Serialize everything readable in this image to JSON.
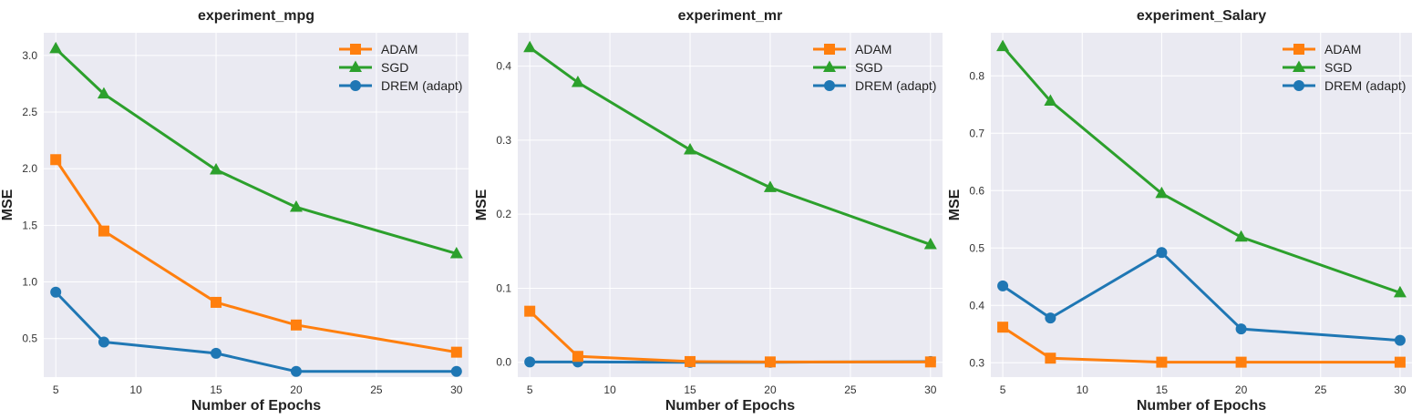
{
  "figure": {
    "colors": {
      "ADAM": "#ff7f0e",
      "SGD": "#2ca02c",
      "DREM (adapt)": "#1f77b4",
      "plot_bg": "#eaeaf2",
      "grid": "#ffffff"
    },
    "legend_order": [
      "ADAM",
      "SGD",
      "DREM (adapt)"
    ],
    "markers": {
      "ADAM": "square",
      "SGD": "triangle",
      "DREM (adapt)": "circle"
    }
  },
  "chart_data": [
    {
      "type": "line",
      "title": "experiment_mpg",
      "xlabel": "Number of Epochs",
      "ylabel": "MSE",
      "x": [
        5,
        8,
        15,
        20,
        30
      ],
      "xlim": [
        4.25,
        30.75
      ],
      "ylim": [
        0.16,
        3.2
      ],
      "xticks": [
        5,
        10,
        15,
        20,
        25,
        30
      ],
      "yticks": [
        0.5,
        1.0,
        1.5,
        2.0,
        2.5,
        3.0
      ],
      "ytick_labels": [
        "0.5",
        "1.0",
        "1.5",
        "2.0",
        "2.5",
        "3.0"
      ],
      "grid": true,
      "legend": "top-right",
      "series": [
        {
          "name": "ADAM",
          "values": [
            2.08,
            1.45,
            0.82,
            0.62,
            0.38
          ]
        },
        {
          "name": "SGD",
          "values": [
            3.06,
            2.66,
            1.99,
            1.66,
            1.25
          ]
        },
        {
          "name": "DREM (adapt)",
          "values": [
            0.91,
            0.47,
            0.37,
            0.21,
            0.21
          ]
        }
      ]
    },
    {
      "type": "line",
      "title": "experiment_mr",
      "xlabel": "Number of Epochs",
      "ylabel": "MSE",
      "x": [
        5,
        8,
        15,
        20,
        30
      ],
      "xlim": [
        4.25,
        30.75
      ],
      "ylim": [
        -0.02,
        0.445
      ],
      "xticks": [
        5,
        10,
        15,
        20,
        25,
        30
      ],
      "yticks": [
        0.0,
        0.1,
        0.2,
        0.3,
        0.4
      ],
      "ytick_labels": [
        "0.0",
        "0.1",
        "0.2",
        "0.3",
        "0.4"
      ],
      "grid": true,
      "legend": "top-right",
      "series": [
        {
          "name": "ADAM",
          "values": [
            0.069,
            0.008,
            0.001,
            0.0005,
            0.0005
          ]
        },
        {
          "name": "SGD",
          "values": [
            0.425,
            0.378,
            0.287,
            0.236,
            0.159
          ]
        },
        {
          "name": "DREM (adapt)",
          "values": [
            0.0005,
            0.0005,
            0.0,
            0.0,
            0.001
          ]
        }
      ]
    },
    {
      "type": "line",
      "title": "experiment_Salary",
      "xlabel": "Number of Epochs",
      "ylabel": "MSE",
      "x": [
        5,
        8,
        15,
        20,
        30
      ],
      "xlim": [
        4.25,
        30.75
      ],
      "ylim": [
        0.275,
        0.875
      ],
      "xticks": [
        5,
        10,
        15,
        20,
        25,
        30
      ],
      "yticks": [
        0.3,
        0.4,
        0.5,
        0.6,
        0.7,
        0.8
      ],
      "ytick_labels": [
        "0.3",
        "0.4",
        "0.5",
        "0.6",
        "0.7",
        "0.8"
      ],
      "grid": true,
      "legend": "top-right",
      "series": [
        {
          "name": "ADAM",
          "values": [
            0.362,
            0.308,
            0.301,
            0.301,
            0.301
          ]
        },
        {
          "name": "SGD",
          "values": [
            0.851,
            0.756,
            0.595,
            0.519,
            0.422
          ]
        },
        {
          "name": "DREM (adapt)",
          "values": [
            0.434,
            0.378,
            0.492,
            0.359,
            0.339
          ]
        }
      ]
    }
  ]
}
